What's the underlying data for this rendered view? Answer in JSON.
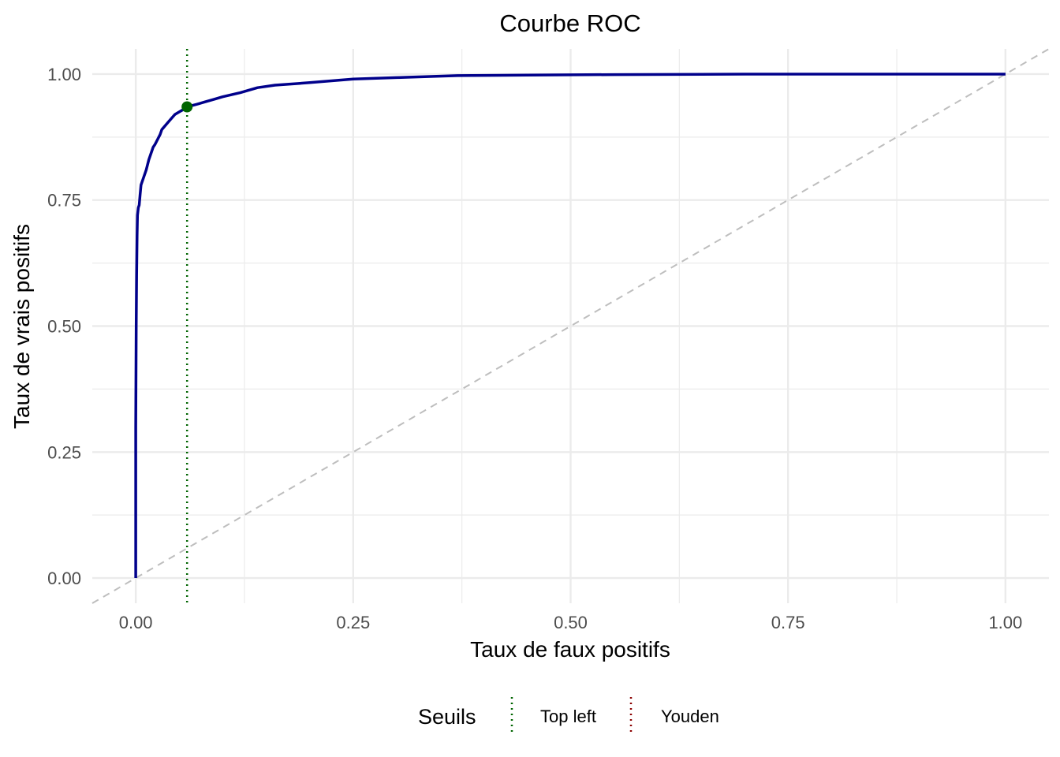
{
  "chart_data": {
    "type": "line",
    "title": "Courbe ROC",
    "xlabel": "Taux de faux positifs",
    "ylabel": "Taux de vrais positifs",
    "xlim": [
      -0.05,
      1.05
    ],
    "ylim": [
      -0.05,
      1.05
    ],
    "x_ticks": [
      0.0,
      0.25,
      0.5,
      0.75,
      1.0
    ],
    "y_ticks": [
      0.0,
      0.25,
      0.5,
      0.75,
      1.0
    ],
    "x_tick_labels": [
      "0.00",
      "0.25",
      "0.50",
      "0.75",
      "1.00"
    ],
    "y_tick_labels": [
      "0.00",
      "0.25",
      "0.50",
      "0.75",
      "1.00"
    ],
    "grid": true,
    "series": [
      {
        "color": "#00008b",
        "x": [
          0.0,
          0.0,
          0.0005,
          0.001,
          0.0015,
          0.002,
          0.003,
          0.004,
          0.005,
          0.006,
          0.008,
          0.01,
          0.012,
          0.015,
          0.018,
          0.02,
          0.022,
          0.025,
          0.028,
          0.03,
          0.035,
          0.04,
          0.045,
          0.05,
          0.055,
          0.059,
          0.07,
          0.08,
          0.09,
          0.1,
          0.12,
          0.14,
          0.16,
          0.2,
          0.25,
          0.3,
          0.37,
          0.45,
          0.55,
          0.7,
          0.85,
          1.0
        ],
        "y": [
          0.0,
          0.3,
          0.5,
          0.6,
          0.68,
          0.72,
          0.735,
          0.74,
          0.76,
          0.78,
          0.79,
          0.8,
          0.81,
          0.83,
          0.845,
          0.855,
          0.86,
          0.87,
          0.88,
          0.89,
          0.9,
          0.91,
          0.92,
          0.925,
          0.93,
          0.935,
          0.94,
          0.945,
          0.95,
          0.955,
          0.963,
          0.973,
          0.978,
          0.983,
          0.99,
          0.993,
          0.997,
          0.998,
          0.999,
          1.0,
          1.0,
          1.0
        ]
      }
    ],
    "reference_line": {
      "from": [
        0,
        0
      ],
      "to": [
        1,
        1
      ],
      "style": "dashed",
      "color": "#bebebe"
    },
    "threshold_lines": [
      {
        "name": "Top left",
        "x": 0.059,
        "color": "#006400",
        "style": "dotted"
      }
    ],
    "optimal_point": {
      "x": 0.059,
      "y": 0.935,
      "color": "#006400"
    },
    "legend": {
      "title": "Seuils",
      "position": "bottom",
      "items": [
        {
          "label": "Top left",
          "color": "#006400",
          "style": "dotted"
        },
        {
          "label": "Youden",
          "color": "#8b0000",
          "style": "dotted"
        }
      ]
    }
  }
}
